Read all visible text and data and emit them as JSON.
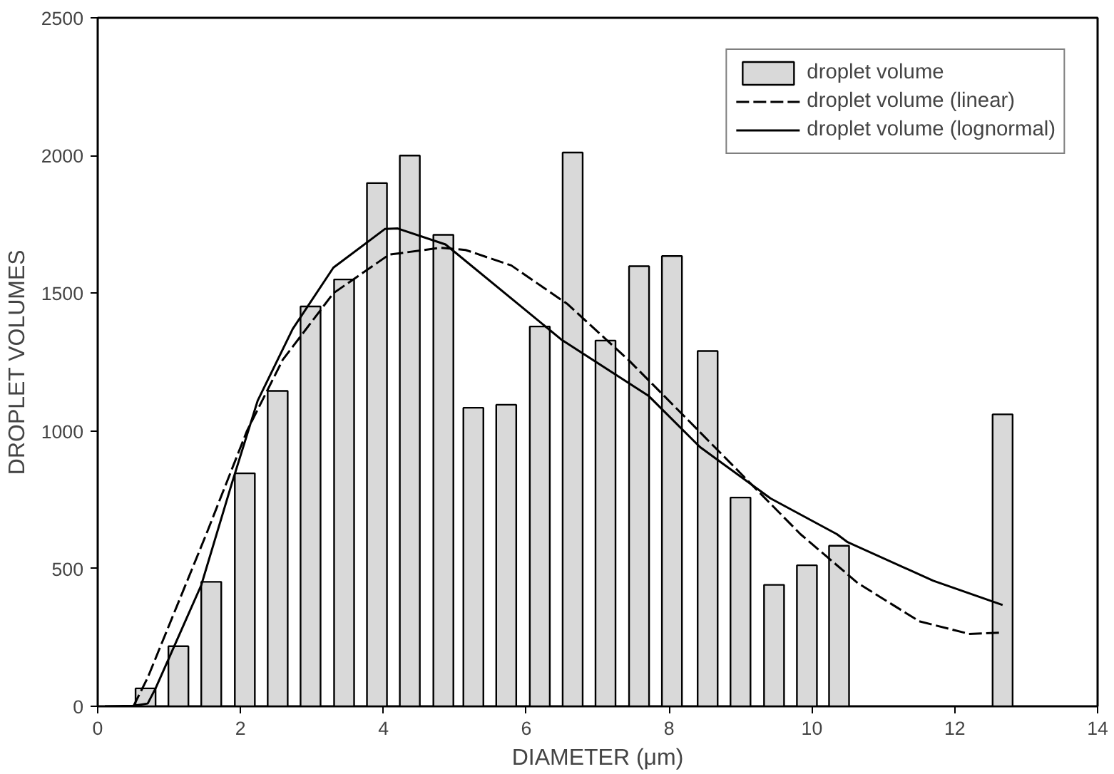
{
  "chart_data": {
    "type": "bar",
    "xlabel": "DIAMETER (μm)",
    "ylabel": "DROPLET VOLUMES",
    "xlim": [
      0,
      14
    ],
    "ylim": [
      0,
      2500
    ],
    "xticks": [
      0,
      2,
      4,
      6,
      8,
      10,
      12,
      14
    ],
    "yticks": [
      0,
      500,
      1000,
      1500,
      2000,
      2500
    ],
    "grid": false,
    "legend": "top right",
    "marker": "none",
    "series": [
      {
        "name": "droplet volume",
        "color": "#d9d9d9",
        "x": [
          0.67,
          1.13,
          1.59,
          2.06,
          2.52,
          2.98,
          3.45,
          3.91,
          4.37,
          4.84,
          5.26,
          5.72,
          6.19,
          6.65,
          7.11,
          7.58,
          8.04,
          8.54,
          9.0,
          9.47,
          9.93,
          10.38,
          12.67
        ],
        "values": [
          65,
          218,
          452,
          846,
          1145,
          1452,
          1550,
          1900,
          2000,
          1712,
          1084,
          1095,
          1379,
          2011,
          1328,
          1598,
          1635,
          1290,
          758,
          441,
          512,
          583,
          1060
        ]
      },
      {
        "name": "droplet volume (linear)",
        "type": "line",
        "line_style": "dashed",
        "color": "#000000",
        "x": [
          0.5,
          0.7,
          1.52,
          2.09,
          2.59,
          3.3,
          4.08,
          4.8,
          5.15,
          5.79,
          6.58,
          7.43,
          8.21,
          8.99,
          9.84,
          10.64,
          11.5,
          12.2,
          12.67
        ],
        "values": [
          0,
          104,
          625,
          1000,
          1258,
          1500,
          1640,
          1665,
          1657,
          1601,
          1460,
          1258,
          1054,
          849,
          625,
          448,
          309,
          263,
          268
        ]
      },
      {
        "name": "droplet volume (lognormal)",
        "type": "line",
        "line_style": "solid",
        "color": "#000000",
        "x": [
          0.1,
          0.5,
          0.7,
          0.81,
          1.45,
          1.88,
          2.24,
          2.73,
          3.3,
          4.02,
          4.2,
          4.87,
          6.5,
          7.71,
          8.43,
          9.42,
          10.35,
          10.5,
          11.7,
          12.67
        ],
        "values": [
          0,
          2,
          10,
          65,
          440,
          811,
          1110,
          1370,
          1593,
          1733,
          1735,
          1677,
          1330,
          1128,
          942,
          755,
          625,
          596,
          456,
          368
        ]
      }
    ]
  }
}
